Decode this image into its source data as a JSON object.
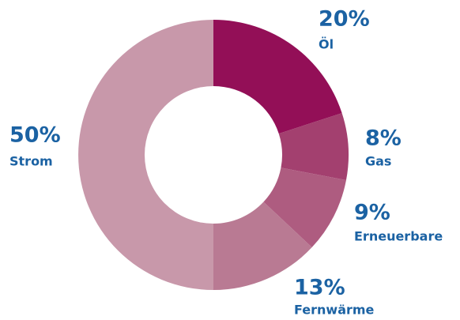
{
  "chart_data": {
    "type": "donut",
    "categories": [
      "Öl",
      "Gas",
      "Erneuerbare",
      "Fernwärme",
      "Strom"
    ],
    "values": [
      20,
      8,
      9,
      13,
      50
    ],
    "value_labels": [
      "20%",
      "8%",
      "9%",
      "13%",
      "50%"
    ],
    "colors": [
      "#930f57",
      "#a3406f",
      "#ae5c80",
      "#b97a93",
      "#c898aa"
    ],
    "label_color": "#1b62a3"
  }
}
